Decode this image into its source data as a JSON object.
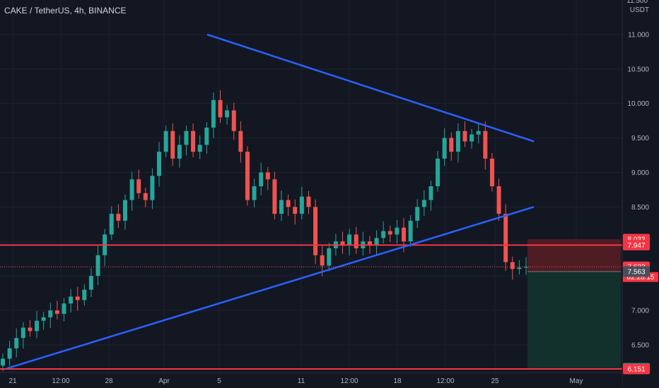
{
  "symbol": {
    "title": "CAKE / TetherUS, 4h, BINANCE"
  },
  "price_axis": {
    "currency": "USDT",
    "ticks": [
      "11.000",
      "10.500",
      "10.000",
      "9.500",
      "9.000",
      "8.500",
      "8.000",
      "7.500",
      "7.000",
      "6.500"
    ],
    "top_partial": "11.500"
  },
  "time_axis": {
    "labels": [
      "21",
      "12:00",
      "28",
      "Apr",
      "5",
      "11",
      "12:00",
      "18",
      "12:00",
      "25",
      "May"
    ]
  },
  "price_tags": {
    "upper_level": "8.033",
    "stop_level": "7.947",
    "last_price": "7.632",
    "countdown": "02:28:15",
    "entry_level": "7.563",
    "target_level": "6.162",
    "support_level": "6.151"
  },
  "colors": {
    "background": "#131722",
    "up_candle": "#26a69a",
    "down_candle": "#ef5350",
    "trendline": "#2962ff",
    "level_line": "#f23645",
    "stop_zone": "#5b1d25",
    "target_zone": "#12312d"
  },
  "chart_data": {
    "type": "candlestick",
    "title": "CAKE / TetherUS, 4h, BINANCE",
    "y_range": [
      6.1,
      11.5
    ],
    "y_ticks": [
      6.5,
      7.0,
      7.5,
      8.0,
      8.5,
      9.0,
      9.5,
      10.0,
      10.5,
      11.0
    ],
    "x_labels": [
      "21",
      "12:00",
      "28",
      "Apr",
      "5",
      "11",
      "12:00",
      "18",
      "12:00",
      "25",
      "May"
    ],
    "last_price": 7.632,
    "horizontal_levels": [
      7.947,
      6.151
    ],
    "trendlines": [
      {
        "name": "descending resistance",
        "from": 11.0,
        "to": 9.45
      },
      {
        "name": "ascending support",
        "from": 6.16,
        "to": 8.5
      }
    ],
    "position": {
      "side": "short",
      "entry": 7.563,
      "stop": 8.033,
      "target": 6.162
    },
    "closes": [
      6.3,
      6.45,
      6.6,
      6.75,
      6.7,
      6.85,
      6.9,
      7.0,
      6.95,
      7.1,
      7.2,
      7.15,
      7.3,
      7.5,
      7.8,
      8.1,
      8.4,
      8.3,
      8.6,
      8.9,
      8.7,
      8.6,
      8.95,
      9.3,
      9.6,
      9.2,
      9.4,
      9.6,
      9.3,
      9.4,
      9.65,
      10.05,
      9.8,
      9.9,
      9.6,
      9.3,
      8.6,
      8.8,
      9.0,
      8.9,
      8.4,
      8.6,
      8.5,
      8.4,
      8.65,
      8.5,
      7.8,
      7.65,
      7.9,
      8.0,
      7.95,
      8.1,
      7.9,
      8.0,
      7.95,
      8.05,
      8.15,
      8.1,
      8.2,
      8.0,
      8.3,
      8.5,
      8.6,
      8.8,
      9.2,
      9.5,
      9.3,
      9.6,
      9.45,
      9.55,
      9.6,
      9.2,
      8.8,
      8.4,
      7.7,
      7.6,
      7.62,
      7.632
    ]
  }
}
